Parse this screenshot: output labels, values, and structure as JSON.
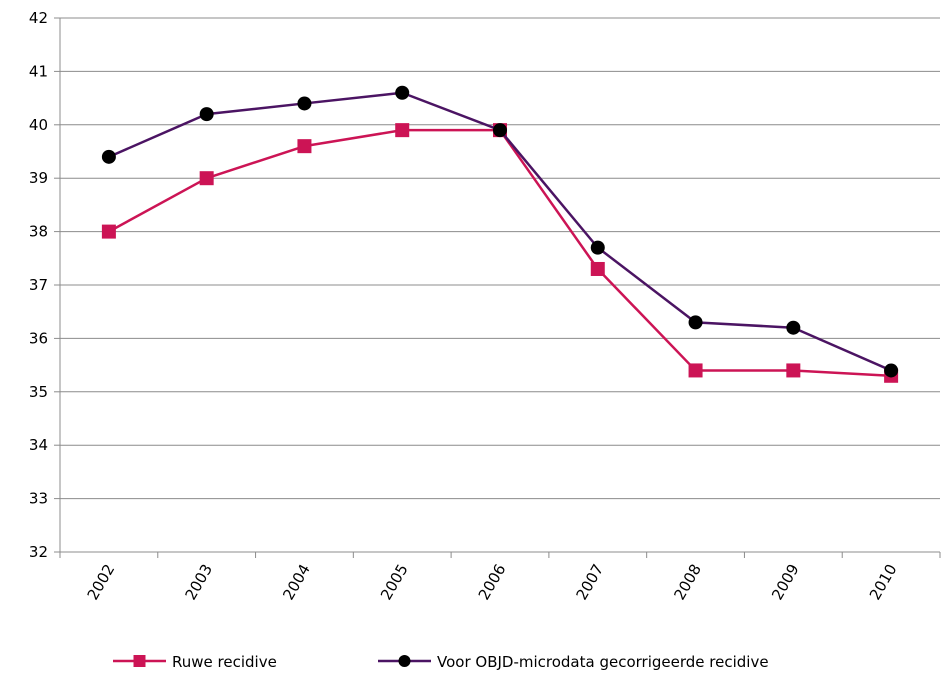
{
  "chart_data": {
    "type": "line",
    "title": "",
    "xlabel": "",
    "ylabel": "",
    "categories": [
      "2002",
      "2003",
      "2004",
      "2005",
      "2006",
      "2007",
      "2008",
      "2009",
      "2010"
    ],
    "ylim": [
      32,
      42
    ],
    "yticks": [
      "32",
      "33",
      "34",
      "35",
      "36",
      "37",
      "38",
      "39",
      "40",
      "41",
      "42"
    ],
    "grid": "horizontal",
    "legend_position": "bottom",
    "series": [
      {
        "name": "Ruwe recidive",
        "color": "#cc1455",
        "marker": "square",
        "values": [
          38.0,
          39.0,
          39.6,
          39.9,
          39.9,
          37.3,
          35.4,
          35.4,
          35.3
        ]
      },
      {
        "name": "Voor OBJD-microdata gecorrigeerde recidive",
        "color": "#4b1463",
        "marker": "circle",
        "values": [
          39.4,
          40.2,
          40.4,
          40.6,
          39.9,
          37.7,
          36.3,
          36.2,
          35.4
        ]
      }
    ]
  }
}
